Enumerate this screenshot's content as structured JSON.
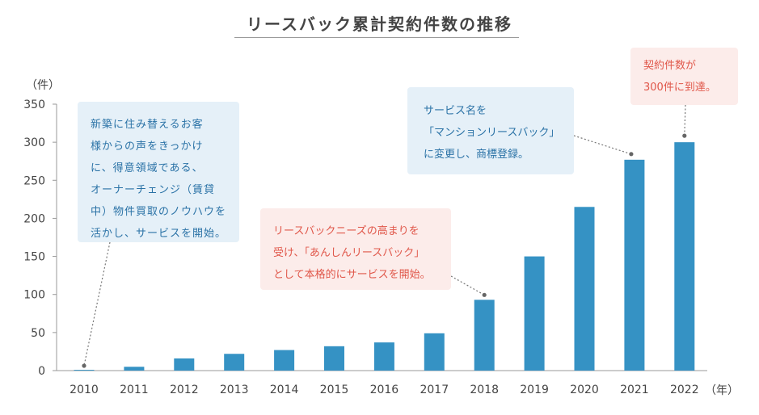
{
  "title": "リースバック累計契約件数の推移",
  "y_unit": "（件）",
  "x_unit": "（年）",
  "colors": {
    "bar": "#3592c4",
    "axis": "#999999",
    "grid": "#d0d0d0",
    "callout_blue_bg": "#e5f0f8",
    "callout_pink_bg": "#fcecea",
    "callout_blue_text": "#2a72a6",
    "callout_pink_text": "#e0574a"
  },
  "annotations": [
    {
      "lines": [
        "新築に住み替えるお客",
        "様からの声をきっかけ",
        "に、得意領域である、",
        "オーナーチェンジ（賃貸",
        "中）物件買取のノウハウを",
        "活かし、サービスを開始。"
      ],
      "style": "blue",
      "points_to": "2010"
    },
    {
      "lines": [
        "リースバックニーズの高まりを",
        "受け、「あんしんリースバック」",
        "として本格的にサービスを開始。"
      ],
      "style": "pink",
      "points_to": "2018"
    },
    {
      "lines": [
        "サービス名を",
        "「マンションリースバック」",
        "に変更し、商標登録。"
      ],
      "style": "blue",
      "points_to": "2021"
    },
    {
      "lines": [
        "契約件数が",
        "300件に到達。"
      ],
      "style": "pink",
      "points_to": "2022"
    }
  ],
  "chart_data": {
    "type": "bar",
    "title": "リースバック累計契約件数の推移",
    "xlabel": "（年）",
    "ylabel": "（件）",
    "categories": [
      "2010",
      "2011",
      "2012",
      "2013",
      "2014",
      "2015",
      "2016",
      "2017",
      "2018",
      "2019",
      "2020",
      "2021",
      "2022"
    ],
    "values": [
      1,
      5,
      16,
      22,
      27,
      32,
      37,
      49,
      93,
      150,
      215,
      277,
      300
    ],
    "ylim": [
      0,
      350
    ],
    "yticks": [
      0,
      50,
      100,
      150,
      200,
      250,
      300,
      350
    ],
    "grid": false,
    "legend": "none"
  }
}
